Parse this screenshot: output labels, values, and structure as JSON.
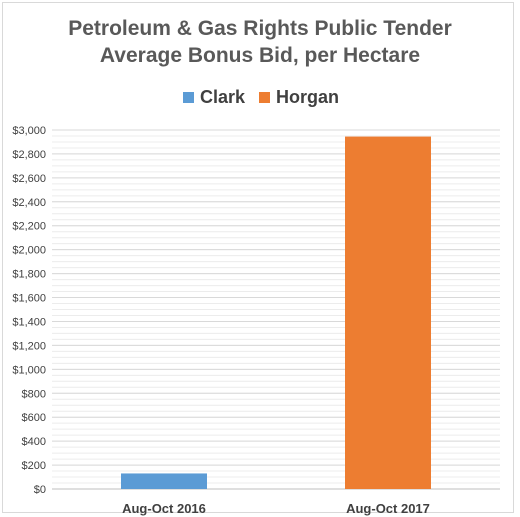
{
  "chart_data": {
    "type": "bar",
    "title_lines": [
      "Petroleum &  Gas Rights Public Tender",
      "Average Bonus Bid, per Hectare"
    ],
    "categories": [
      "Aug-Oct 2016",
      "Aug-Oct 2017"
    ],
    "series": [
      {
        "name": "Clark",
        "color": "#5b9bd5",
        "values": [
          130,
          null
        ]
      },
      {
        "name": "Horgan",
        "color": "#ed7d31",
        "values": [
          null,
          2945
        ]
      }
    ],
    "ylim": [
      0,
      3000
    ],
    "yticks": [
      "$0",
      "$200",
      "$400",
      "$600",
      "$800",
      "$1,000",
      "$1,200",
      "$1,400",
      "$1,600",
      "$1,800",
      "$2,000",
      "$2,200",
      "$2,400",
      "$2,600",
      "$2,800",
      "$3,000"
    ],
    "legend_position": "top",
    "grid": true
  }
}
